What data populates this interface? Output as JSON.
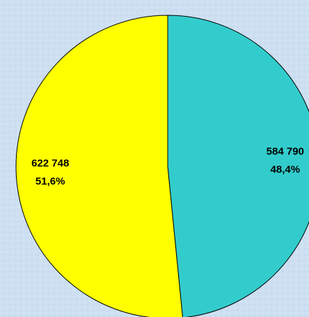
{
  "chart_data": {
    "type": "pie",
    "values": [
      584790,
      622748
    ],
    "value_labels": [
      "584 790",
      "622 748"
    ],
    "percent_labels": [
      "48,4%",
      "51,6%"
    ],
    "colors": [
      "#33cccc",
      "#ffff00"
    ]
  }
}
